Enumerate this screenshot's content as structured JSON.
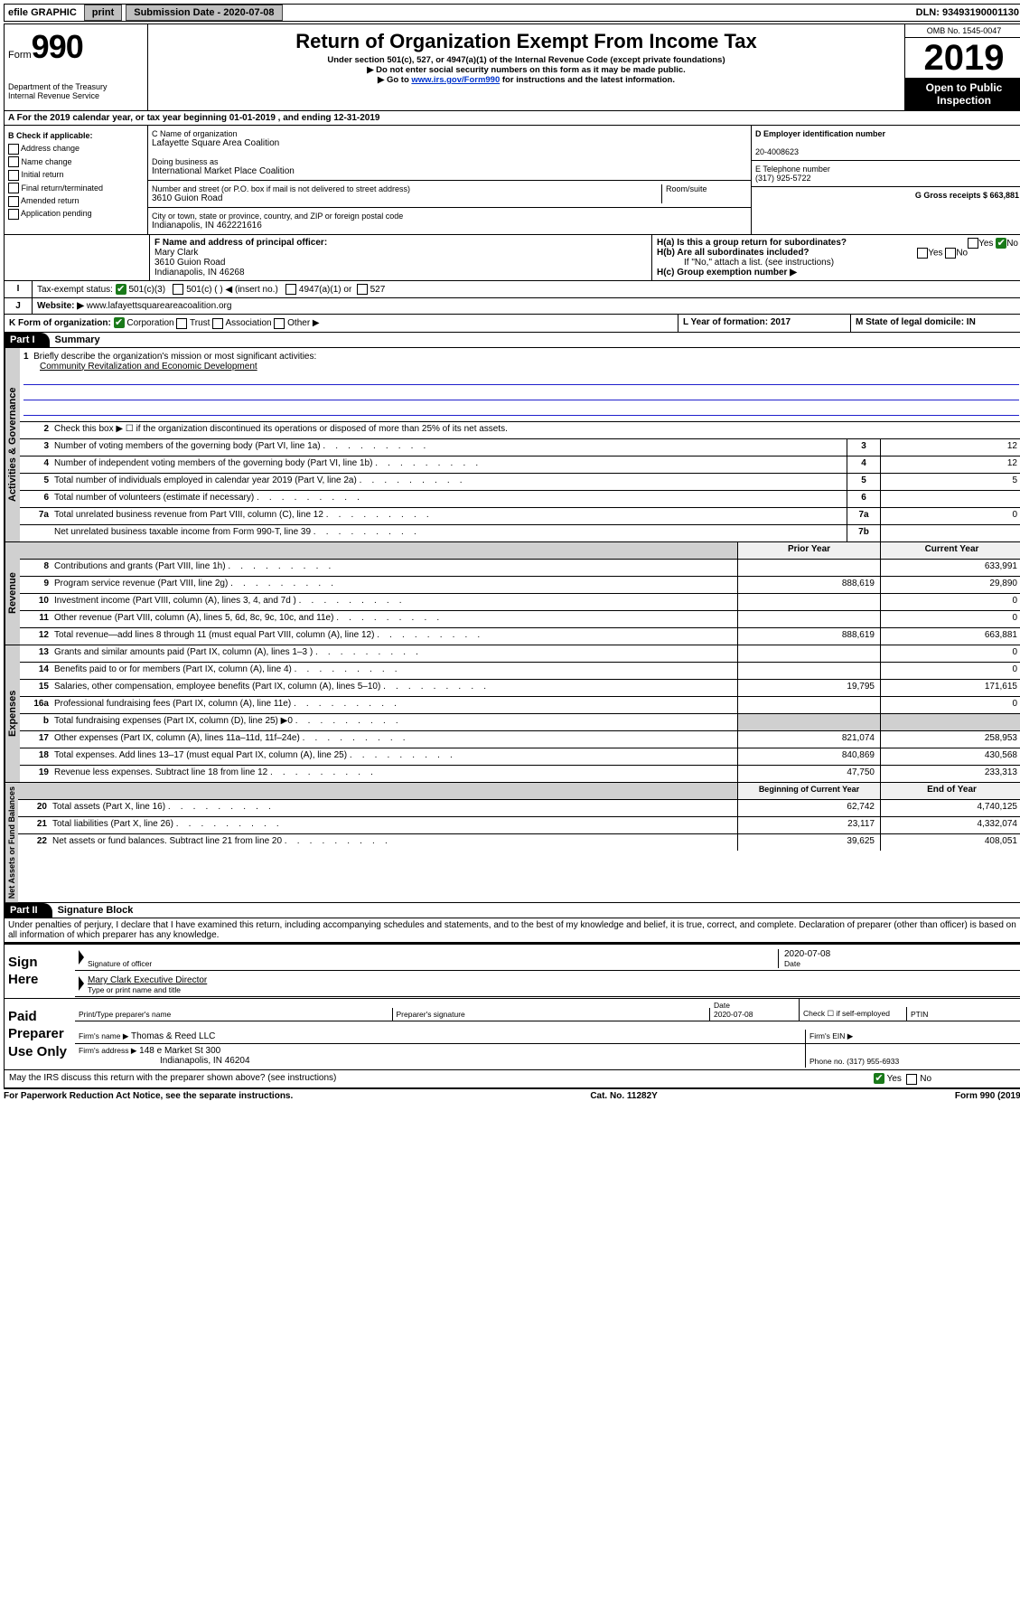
{
  "topbar": {
    "efile": "efile GRAPHIC",
    "print": "print",
    "subdate_lbl": "Submission Date - 2020-07-08",
    "dln": "DLN: 93493190001130"
  },
  "header": {
    "form_label": "Form",
    "form_num": "990",
    "dept": "Department of the Treasury",
    "irs": "Internal Revenue Service",
    "title": "Return of Organization Exempt From Income Tax",
    "sub1": "Under section 501(c), 527, or 4947(a)(1) of the Internal Revenue Code (except private foundations)",
    "sub2": "▶ Do not enter social security numbers on this form as it may be made public.",
    "sub3_pre": "▶ Go to ",
    "sub3_link": "www.irs.gov/Form990",
    "sub3_post": " for instructions and the latest information.",
    "omb": "OMB No. 1545-0047",
    "year": "2019",
    "open": "Open to Public Inspection"
  },
  "rowA": "A For the 2019 calendar year, or tax year beginning 01-01-2019    , and ending 12-31-2019",
  "boxB": {
    "title": "B Check if applicable:",
    "opts": [
      "Address change",
      "Name change",
      "Initial return",
      "Final return/terminated",
      "Amended return",
      "Application pending"
    ]
  },
  "boxC": {
    "name_lbl": "C Name of organization",
    "name": "Lafayette Square Area Coalition",
    "dba_lbl": "Doing business as",
    "dba": "International Market Place Coalition",
    "addr_lbl": "Number and street (or P.O. box if mail is not delivered to street address)",
    "room_lbl": "Room/suite",
    "addr": "3610 Guion Road",
    "city_lbl": "City or town, state or province, country, and ZIP or foreign postal code",
    "city": "Indianapolis, IN  462221616"
  },
  "boxD": {
    "lbl": "D Employer identification number",
    "val": "20-4008623"
  },
  "boxE": {
    "lbl": "E Telephone number",
    "val": "(317) 925-5722"
  },
  "boxG": {
    "lbl": "G Gross receipts $ 663,881"
  },
  "boxF": {
    "lbl": "F  Name and address of principal officer:",
    "l1": "Mary Clark",
    "l2": "3610 Guion Road",
    "l3": "Indianapolis, IN  46268"
  },
  "boxH": {
    "a": "H(a)  Is this a group return for subordinates?",
    "b": "H(b)  Are all subordinates included?",
    "note": "If \"No,\" attach a list. (see instructions)",
    "c": "H(c)  Group exemption number ▶"
  },
  "boxI": {
    "lbl": "Tax-exempt status:",
    "o1": "501(c)(3)",
    "o2": "501(c) (  ) ◀ (insert no.)",
    "o3": "4947(a)(1) or",
    "o4": "527"
  },
  "boxJ": {
    "lbl": "Website: ▶",
    "val": "www.lafayettsquareareacoalition.org"
  },
  "boxK": {
    "lbl": "K Form of organization:",
    "corp": "Corporation",
    "trust": "Trust",
    "assoc": "Association",
    "other": "Other ▶"
  },
  "boxL": {
    "lbl": "L Year of formation: 2017"
  },
  "boxM": {
    "lbl": "M State of legal domicile: IN"
  },
  "part1": {
    "hdr": "Part I",
    "title": "Summary",
    "q1_lbl": "1",
    "q1": "Briefly describe the organization's mission or most significant activities:",
    "q1_val": "Community Revitalization and Economic Development",
    "q2_lbl": "2",
    "q2": "Check this box ▶ ☐  if the organization discontinued its operations or disposed of more than 25% of its net assets.",
    "rows_gov": [
      {
        "n": "3",
        "d": "Number of voting members of the governing body (Part VI, line 1a)",
        "box": "3",
        "v": "12"
      },
      {
        "n": "4",
        "d": "Number of independent voting members of the governing body (Part VI, line 1b)",
        "box": "4",
        "v": "12"
      },
      {
        "n": "5",
        "d": "Total number of individuals employed in calendar year 2019 (Part V, line 2a)",
        "box": "5",
        "v": "5"
      },
      {
        "n": "6",
        "d": "Total number of volunteers (estimate if necessary)",
        "box": "6",
        "v": ""
      },
      {
        "n": "7a",
        "d": "Total unrelated business revenue from Part VIII, column (C), line 12",
        "box": "7a",
        "v": "0"
      },
      {
        "n": "",
        "d": "Net unrelated business taxable income from Form 990-T, line 39",
        "box": "7b",
        "v": ""
      }
    ],
    "col_prior": "Prior Year",
    "col_curr": "Current Year",
    "rows_rev": [
      {
        "n": "8",
        "d": "Contributions and grants (Part VIII, line 1h)",
        "p": "",
        "c": "633,991"
      },
      {
        "n": "9",
        "d": "Program service revenue (Part VIII, line 2g)",
        "p": "888,619",
        "c": "29,890"
      },
      {
        "n": "10",
        "d": "Investment income (Part VIII, column (A), lines 3, 4, and 7d )",
        "p": "",
        "c": "0"
      },
      {
        "n": "11",
        "d": "Other revenue (Part VIII, column (A), lines 5, 6d, 8c, 9c, 10c, and 11e)",
        "p": "",
        "c": "0"
      },
      {
        "n": "12",
        "d": "Total revenue—add lines 8 through 11 (must equal Part VIII, column (A), line 12)",
        "p": "888,619",
        "c": "663,881"
      }
    ],
    "rows_exp": [
      {
        "n": "13",
        "d": "Grants and similar amounts paid (Part IX, column (A), lines 1–3 )",
        "p": "",
        "c": "0"
      },
      {
        "n": "14",
        "d": "Benefits paid to or for members (Part IX, column (A), line 4)",
        "p": "",
        "c": "0"
      },
      {
        "n": "15",
        "d": "Salaries, other compensation, employee benefits (Part IX, column (A), lines 5–10)",
        "p": "19,795",
        "c": "171,615"
      },
      {
        "n": "16a",
        "d": "Professional fundraising fees (Part IX, column (A), line 11e)",
        "p": "",
        "c": "0"
      },
      {
        "n": "b",
        "d": "Total fundraising expenses (Part IX, column (D), line 25) ▶0",
        "p": "",
        "c": "",
        "grey": true
      },
      {
        "n": "17",
        "d": "Other expenses (Part IX, column (A), lines 11a–11d, 11f–24e)",
        "p": "821,074",
        "c": "258,953"
      },
      {
        "n": "18",
        "d": "Total expenses. Add lines 13–17 (must equal Part IX, column (A), line 25)",
        "p": "840,869",
        "c": "430,568"
      },
      {
        "n": "19",
        "d": "Revenue less expenses. Subtract line 18 from line 12",
        "p": "47,750",
        "c": "233,313"
      }
    ],
    "col_beg": "Beginning of Current Year",
    "col_end": "End of Year",
    "rows_na": [
      {
        "n": "20",
        "d": "Total assets (Part X, line 16)",
        "p": "62,742",
        "c": "4,740,125"
      },
      {
        "n": "21",
        "d": "Total liabilities (Part X, line 26)",
        "p": "23,117",
        "c": "4,332,074"
      },
      {
        "n": "22",
        "d": "Net assets or fund balances. Subtract line 21 from line 20",
        "p": "39,625",
        "c": "408,051"
      }
    ]
  },
  "vtabs": {
    "gov": "Activities & Governance",
    "rev": "Revenue",
    "exp": "Expenses",
    "na": "Net Assets or Fund Balances"
  },
  "part2": {
    "hdr": "Part II",
    "title": "Signature Block",
    "decl": "Under penalties of perjury, I declare that I have examined this return, including accompanying schedules and statements, and to the best of my knowledge and belief, it is true, correct, and complete. Declaration of preparer (other than officer) is based on all information of which preparer has any knowledge."
  },
  "sign": {
    "here": "Sign Here",
    "sig_lbl": "Signature of officer",
    "date": "2020-07-08",
    "date_lbl": "Date",
    "name": "Mary Clark  Executive Director",
    "name_lbl": "Type or print name and title"
  },
  "paid": {
    "title": "Paid Preparer Use Only",
    "col1": "Print/Type preparer's name",
    "col2": "Preparer's signature",
    "col3_lbl": "Date",
    "col3": "2020-07-08",
    "col4": "Check ☐ if self-employed",
    "col5": "PTIN",
    "firm_lbl": "Firm's name    ▶",
    "firm": "Thomas & Reed LLC",
    "ein_lbl": "Firm's EIN ▶",
    "addr_lbl": "Firm's address ▶",
    "addr": "148 e Market St 300",
    "addr2": "Indianapolis, IN  46204",
    "phone_lbl": "Phone no. (317) 955-6933"
  },
  "discuss": "May the IRS discuss this return with the preparer shown above? (see instructions)",
  "footer": {
    "l": "For Paperwork Reduction Act Notice, see the separate instructions.",
    "m": "Cat. No. 11282Y",
    "r": "Form 990 (2019)"
  },
  "colors": {
    "link": "#0033cc",
    "rule": "#2020cc",
    "green": "#1a7a1a"
  }
}
